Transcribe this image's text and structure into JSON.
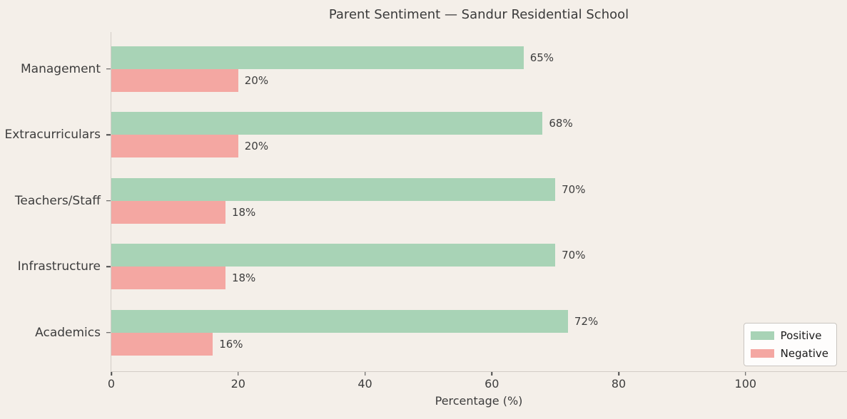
{
  "title": "Parent Sentiment — Sandur Residential School",
  "chart_data": {
    "type": "bar",
    "orientation": "horizontal",
    "title": "Parent Sentiment — Sandur Residential School",
    "categories": [
      "Management",
      "Extracurriculars",
      "Teachers/Staff",
      "Infrastructure",
      "Academics"
    ],
    "series": [
      {
        "name": "Positive",
        "color": "#a8d3b6",
        "values": [
          65,
          68,
          70,
          70,
          72
        ]
      },
      {
        "name": "Negative",
        "color": "#f4a7a2",
        "values": [
          20,
          20,
          18,
          18,
          16
        ]
      }
    ],
    "value_labels": {
      "Positive": [
        "65%",
        "68%",
        "70%",
        "70%",
        "72%"
      ],
      "Negative": [
        "20%",
        "20%",
        "18%",
        "18%",
        "16%"
      ]
    },
    "xlabel": "Percentage (%)",
    "xticks": [
      0,
      20,
      40,
      60,
      80,
      100
    ],
    "xlim": [
      0,
      116
    ],
    "grid": false,
    "legend_position": "lower right",
    "colors": {
      "background": "#f4efe9",
      "text": "#3d3d3d",
      "spine": "#d2ccc6"
    }
  }
}
